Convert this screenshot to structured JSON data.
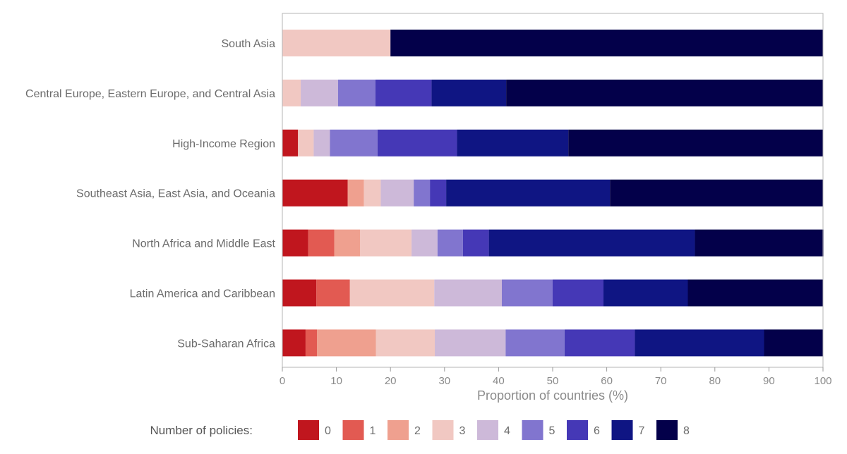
{
  "chart_data": {
    "type": "bar",
    "orientation": "horizontal",
    "stacked": true,
    "categories": [
      "South Asia",
      "Central Europe, Eastern Europe, and Central Asia",
      "High-Income Region",
      "Southeast Asia, East Asia, and Oceania",
      "North Africa and Middle East",
      "Latin America and Caribbean",
      "Sub-Saharan Africa"
    ],
    "series": [
      {
        "name": "0",
        "color": "#c0161e",
        "values": [
          0,
          0,
          2.9,
          12.1,
          4.8,
          6.3,
          4.3
        ]
      },
      {
        "name": "1",
        "color": "#e25a52",
        "values": [
          0,
          0,
          0,
          0,
          4.8,
          6.2,
          2.1
        ]
      },
      {
        "name": "2",
        "color": "#efa08f",
        "values": [
          0,
          0,
          0,
          3.0,
          4.8,
          0,
          10.9
        ]
      },
      {
        "name": "3",
        "color": "#f1c8c2",
        "values": [
          20.0,
          3.4,
          2.9,
          3.1,
          9.5,
          15.6,
          10.9
        ]
      },
      {
        "name": "4",
        "color": "#cdb9d9",
        "values": [
          0,
          6.9,
          3.0,
          6.1,
          4.8,
          12.5,
          13.1
        ]
      },
      {
        "name": "5",
        "color": "#8175cf",
        "values": [
          0,
          6.9,
          8.8,
          3.0,
          4.7,
          9.4,
          10.9
        ]
      },
      {
        "name": "6",
        "color": "#4538b6",
        "values": [
          0,
          10.4,
          14.7,
          3.0,
          4.8,
          9.4,
          13.0
        ]
      },
      {
        "name": "7",
        "color": "#0f1583",
        "values": [
          0,
          13.8,
          20.6,
          30.3,
          38.1,
          15.6,
          23.9
        ]
      },
      {
        "name": "8",
        "color": "#03004a",
        "values": [
          80.0,
          58.6,
          47.1,
          39.4,
          23.8,
          25.0,
          10.9
        ]
      }
    ],
    "xlabel": "Proportion of countries (%)",
    "xlim": [
      0,
      100
    ],
    "xticks": [
      0,
      10,
      20,
      30,
      40,
      50,
      60,
      70,
      80,
      90,
      100
    ],
    "legend": {
      "title": "Number of policies:",
      "placement": "bottom"
    },
    "grid": false
  }
}
